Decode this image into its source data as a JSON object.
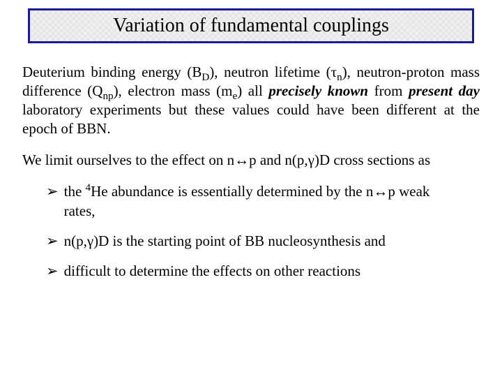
{
  "title": "Variation of fundamental couplings",
  "colors": {
    "border": "#1a1a9a",
    "title_bg": "#f0f0f0",
    "text": "#000000",
    "page_bg": "#ffffff"
  },
  "typography": {
    "family": "Times New Roman",
    "title_fontsize": 28,
    "body_fontsize": 21,
    "sub_scale": 0.72
  },
  "symbols": {
    "tau": "τ",
    "gamma": "γ",
    "lrarrow": "↔",
    "bullet": "➢"
  },
  "para1": {
    "t0": "Deuterium binding energy (B",
    "sub0": "D",
    "t1": "), neutron lifetime (",
    "sym_tau": "τ",
    "sub1": "n",
    "t2": "), neutron-proton mass difference (Q",
    "sub2": "np",
    "t3": "), electron mass (m",
    "sub3": "e",
    "t4": ") all ",
    "em0": "precisely known",
    "t5": " from ",
    "em1": "present day",
    "t6": " laboratory experiments but these values could have been different at the epoch of BBN."
  },
  "para2": {
    "t0": "We limit ourselves to the effect on n",
    "arrow": "↔",
    "t1": "p and n(p,",
    "sym_gamma": "γ",
    "t2": ")D cross sections as"
  },
  "bullets": {
    "b0": {
      "t0": "the ",
      "sup0": "4",
      "t1": "He abundance is essentially determined by the n",
      "arrow": "↔",
      "t2": "p weak rates,"
    },
    "b1": {
      "t0": "n(p,",
      "sym_gamma": "γ",
      "t1": ")D is the starting point of BB nucleosynthesis and"
    },
    "b2": {
      "t0": "difficult to determine the effects on other reactions"
    }
  }
}
